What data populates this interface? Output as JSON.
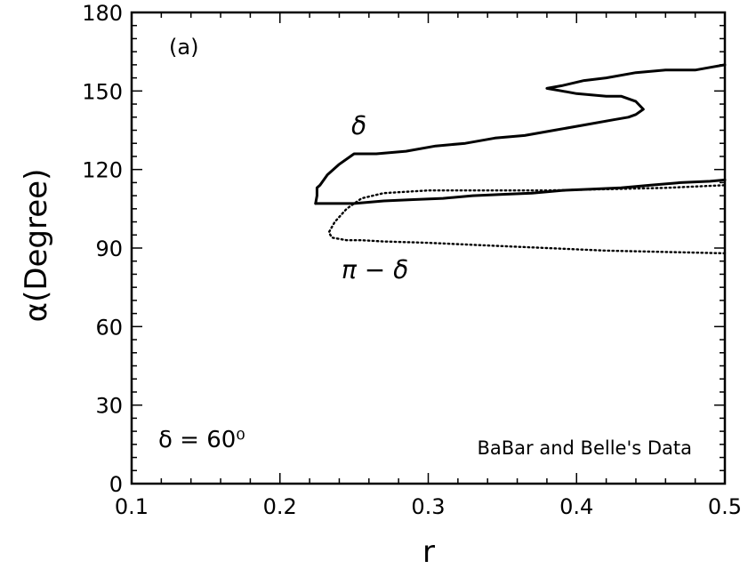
{
  "chart_data": {
    "type": "line",
    "panel_label": "(a)",
    "xlabel": "r",
    "ylabel": "α(Degree)",
    "xlim": [
      0.1,
      0.5
    ],
    "ylim": [
      0,
      180
    ],
    "xticks": [
      "0.1",
      "0.2",
      "0.3",
      "0.4",
      "0.5"
    ],
    "yticks": [
      "0",
      "30",
      "60",
      "90",
      "120",
      "150",
      "180"
    ],
    "grid": false,
    "annotations": {
      "delta_label": "δ",
      "pi_minus_delta_label": "π − δ",
      "delta_value": "δ = 60⁰",
      "data_source": "BaBar and Belle's Data"
    },
    "series": [
      {
        "name": "δ",
        "style": "solid",
        "x": [
          0.224,
          0.225,
          0.225,
          0.227,
          0.232,
          0.24,
          0.25,
          0.265,
          0.285,
          0.305,
          0.325,
          0.345,
          0.365,
          0.385,
          0.405,
          0.425,
          0.435,
          0.44,
          0.445,
          0.44,
          0.43,
          0.42,
          0.41,
          0.4,
          0.39,
          0.38,
          0.39,
          0.405,
          0.42,
          0.44,
          0.46,
          0.48,
          0.49,
          0.5
        ],
        "y": [
          107,
          110,
          113,
          114,
          118,
          122,
          126,
          126,
          127,
          129,
          130,
          132,
          133,
          135,
          137,
          139,
          140,
          141,
          143,
          146,
          148,
          148,
          148.5,
          149,
          150,
          151,
          152,
          154,
          155,
          157,
          158,
          158,
          159,
          160
        ]
      },
      {
        "name": "δ",
        "style": "solid",
        "x": [
          0.224,
          0.235,
          0.25,
          0.27,
          0.29,
          0.31,
          0.33,
          0.35,
          0.37,
          0.39,
          0.41,
          0.43,
          0.45,
          0.47,
          0.49,
          0.5
        ],
        "y": [
          107,
          107,
          107,
          108,
          108.5,
          109,
          110,
          110.5,
          111,
          112,
          112.5,
          113,
          114,
          115,
          115.5,
          116
        ]
      },
      {
        "name": "π − δ",
        "style": "dotted",
        "x": [
          0.5,
          0.46,
          0.42,
          0.38,
          0.34,
          0.3,
          0.27,
          0.255,
          0.245,
          0.24,
          0.235,
          0.233,
          0.237,
          0.245,
          0.255,
          0.27,
          0.3,
          0.34,
          0.38,
          0.42,
          0.46,
          0.5
        ],
        "y": [
          88,
          88.5,
          89,
          90,
          91,
          92,
          92.5,
          93,
          93,
          93.5,
          94,
          96,
          100,
          105,
          109,
          111,
          112,
          112,
          112,
          112.5,
          113,
          114
        ]
      }
    ]
  }
}
